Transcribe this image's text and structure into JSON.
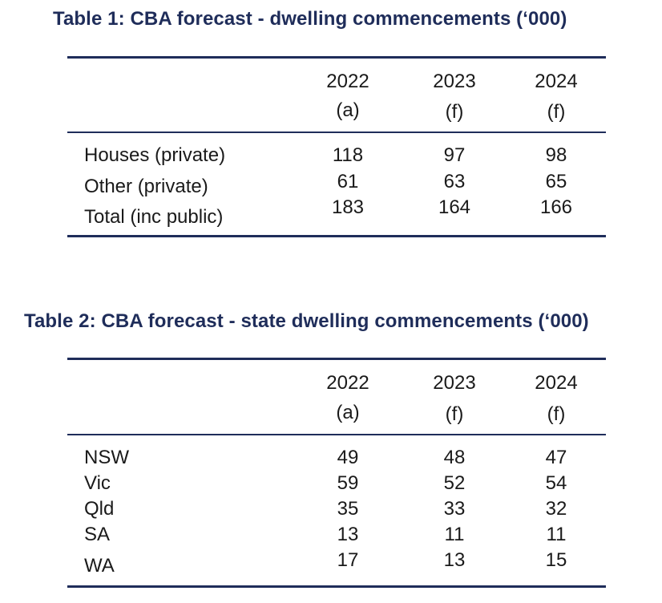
{
  "table1": {
    "title": "Table 1: CBA forecast - dwelling commencements (‘000)",
    "columns": [
      {
        "year": "2022",
        "note": "(a)"
      },
      {
        "year": "2023",
        "note": "(f)"
      },
      {
        "year": "2024",
        "note": "(f)"
      }
    ],
    "rows": [
      {
        "label": "Houses (private)",
        "values": [
          "118",
          "97",
          "98"
        ]
      },
      {
        "label": "Other (private)",
        "values": [
          "61",
          "63",
          "65"
        ]
      },
      {
        "label": "Total (inc public)",
        "values": [
          "183",
          "164",
          "166"
        ]
      }
    ]
  },
  "table2": {
    "title": "Table 2: CBA forecast - state dwelling commencements (‘000)",
    "columns": [
      {
        "year": "2022",
        "note": "(a)"
      },
      {
        "year": "2023",
        "note": "(f)"
      },
      {
        "year": "2024",
        "note": "(f)"
      }
    ],
    "rows": [
      {
        "label": "NSW",
        "values": [
          "49",
          "48",
          "47"
        ]
      },
      {
        "label": "Vic",
        "values": [
          "59",
          "52",
          "54"
        ]
      },
      {
        "label": "Qld",
        "values": [
          "35",
          "33",
          "32"
        ]
      },
      {
        "label": "SA",
        "values": [
          "13",
          "11",
          "11"
        ]
      },
      {
        "label": "WA",
        "values": [
          "17",
          "13",
          "15"
        ]
      }
    ]
  }
}
